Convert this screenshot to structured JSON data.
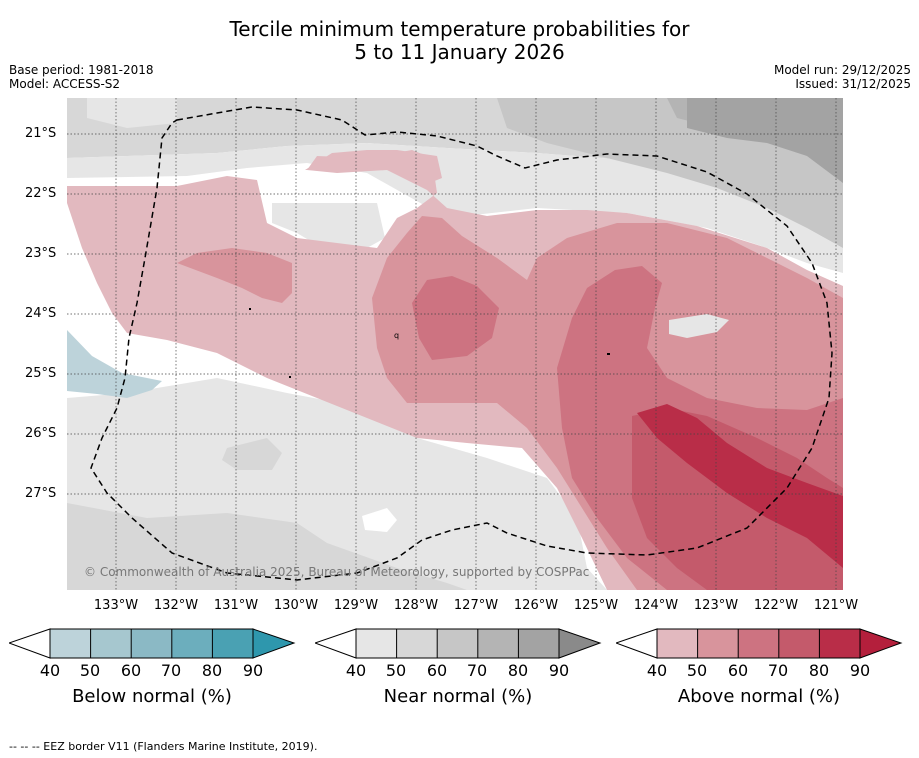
{
  "title": {
    "line1": "Tercile minimum temperature probabilities for",
    "line2": "5 to 11 January 2026"
  },
  "meta_left": {
    "base_period": "Base period: 1981-2018",
    "model": "Model: ACCESS-S2"
  },
  "meta_right": {
    "model_run": "Model run: 29/12/2025",
    "issued": "Issued: 31/12/2025"
  },
  "map": {
    "copyright": "© Commonwealth of Australia 2025, Bureau of Meteorology, supported by COSPPac",
    "lon_labels": [
      "133°W",
      "132°W",
      "131°W",
      "130°W",
      "129°W",
      "128°W",
      "127°W",
      "126°W",
      "125°W",
      "124°W",
      "123°W",
      "122°W",
      "121°W"
    ],
    "lat_labels": [
      "21°S",
      "22°S",
      "23°S",
      "24°S",
      "25°S",
      "26°S",
      "27°S"
    ]
  },
  "colorbars": [
    {
      "name": "below",
      "title": "Below normal (%)",
      "ticks": [
        "40",
        "50",
        "60",
        "70",
        "80",
        "90"
      ],
      "colors": [
        "#bdd3da",
        "#a6c7cf",
        "#8bb9c5",
        "#6caebd",
        "#4aa1b3",
        "#2e97ad"
      ]
    },
    {
      "name": "near",
      "title": "Near normal (%)",
      "ticks": [
        "40",
        "50",
        "60",
        "70",
        "80",
        "90"
      ],
      "colors": [
        "#e6e6e6",
        "#d7d7d7",
        "#c6c6c6",
        "#b4b4b4",
        "#a3a3a3",
        "#8a8a8a"
      ]
    },
    {
      "name": "above",
      "title": "Above normal (%)",
      "ticks": [
        "40",
        "50",
        "60",
        "70",
        "80",
        "90"
      ],
      "colors": [
        "#e2b9bf",
        "#d8949c",
        "#cd7381",
        "#c45a6b",
        "#b92d48",
        "#b41f3c"
      ]
    }
  ],
  "footer": "--  --  -- EEZ border V11 (Flanders Marine Institute, 2019)."
}
